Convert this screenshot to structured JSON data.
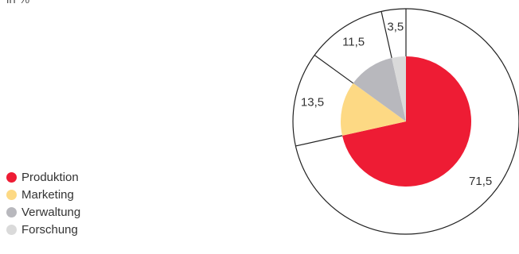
{
  "unit_label": "in %",
  "legend": [
    {
      "label": "Produktion",
      "color": "#ee1c34"
    },
    {
      "label": "Marketing",
      "color": "#fdd984"
    },
    {
      "label": "Verwaltung",
      "color": "#b8b8bd"
    },
    {
      "label": "Forschung",
      "color": "#dadada"
    }
  ],
  "chart_data": {
    "type": "pie",
    "title": "",
    "unit": "in %",
    "series": [
      {
        "name": "Produktion",
        "value": 71.5,
        "label": "71,5",
        "color": "#ee1c34"
      },
      {
        "name": "Marketing",
        "value": 13.5,
        "label": "13,5",
        "color": "#fdd984"
      },
      {
        "name": "Verwaltung",
        "value": 11.5,
        "label": "11,5",
        "color": "#b8b8bd"
      },
      {
        "name": "Forschung",
        "value": 3.5,
        "label": "3,5",
        "color": "#dadada"
      }
    ],
    "start_angle_deg": 0,
    "direction": "clockwise",
    "style": "inner pie with outer ring divided into matching segments"
  }
}
